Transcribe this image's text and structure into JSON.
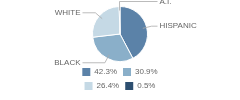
{
  "chart_data": {
    "type": "pie",
    "categories": [
      "HISPANIC",
      "BLACK",
      "WHITE",
      "A.I."
    ],
    "values": [
      42.3,
      30.9,
      26.4,
      0.5
    ],
    "value_labels": [
      "42.3%",
      "30.9%",
      "26.4%",
      "0.5%"
    ],
    "colors": [
      "#5b82a8",
      "#8aafc9",
      "#c5d9e5",
      "#2d4f70"
    ],
    "legend": "bottom"
  }
}
